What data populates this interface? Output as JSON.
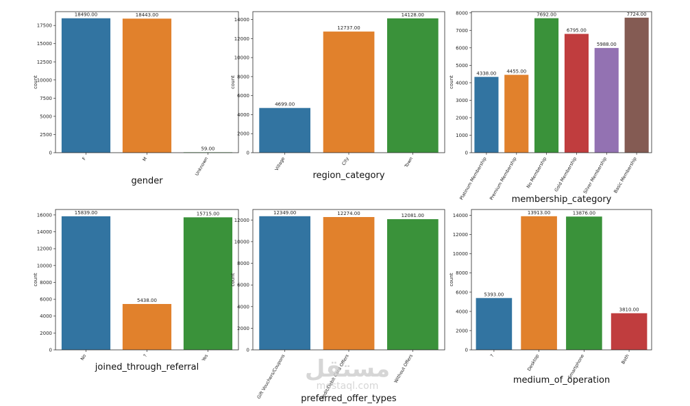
{
  "colors": [
    "#3274a1",
    "#e1812c",
    "#3a923a",
    "#c03d3e",
    "#9372b2",
    "#845b53"
  ],
  "watermark": {
    "logo": "مستقل",
    "url": "mostaql.com"
  },
  "chart_data": [
    {
      "type": "bar",
      "xlabel": "gender",
      "ylabel": "count",
      "categories": [
        "F",
        "M",
        "Unknown"
      ],
      "values": [
        18490,
        18443,
        59
      ],
      "value_labels": [
        "18490.00",
        "18443.00",
        "59.00"
      ],
      "yticks": [
        0,
        2500,
        5000,
        7500,
        10000,
        12500,
        15000,
        17500
      ],
      "ylim": [
        0,
        19400
      ],
      "grid": false
    },
    {
      "type": "bar",
      "xlabel": "region_category",
      "ylabel": "count",
      "categories": [
        "Village",
        "City",
        "Town"
      ],
      "values": [
        4699,
        12737,
        14128
      ],
      "value_labels": [
        "4699.00",
        "12737.00",
        "14128.00"
      ],
      "yticks": [
        0,
        2000,
        4000,
        6000,
        8000,
        10000,
        12000,
        14000
      ],
      "ylim": [
        0,
        14830
      ],
      "grid": false
    },
    {
      "type": "bar",
      "xlabel": "membership_category",
      "ylabel": "count",
      "categories": [
        "Platinum Membership",
        "Premium Membership",
        "No Membership",
        "Gold Membership",
        "Silver Membership",
        "Basic Membership"
      ],
      "values": [
        4338,
        4455,
        7692,
        6795,
        5988,
        7724
      ],
      "value_labels": [
        "4338.00",
        "4455.00",
        "7692.00",
        "6795.00",
        "5988.00",
        "7724.00"
      ],
      "yticks": [
        0,
        1000,
        2000,
        3000,
        4000,
        5000,
        6000,
        7000,
        8000
      ],
      "ylim": [
        0,
        8070
      ],
      "grid": false
    },
    {
      "type": "bar",
      "xlabel": "joined_through_referral",
      "ylabel": "count",
      "categories": [
        "No",
        "?",
        "Yes"
      ],
      "values": [
        15839,
        5438,
        15715
      ],
      "value_labels": [
        "15839.00",
        "5438.00",
        "15715.00"
      ],
      "yticks": [
        0,
        2000,
        4000,
        6000,
        8000,
        10000,
        12000,
        14000,
        16000
      ],
      "ylim": [
        0,
        16640
      ],
      "grid": false
    },
    {
      "type": "bar",
      "xlabel": "preferred_offer_types",
      "ylabel": "count",
      "categories": [
        "Gift Vouchers/Coupons",
        "Credit/Debit Card Offers",
        "Without Offers"
      ],
      "values": [
        12349,
        12274,
        12081
      ],
      "value_labels": [
        "12349.00",
        "12274.00",
        "12081.00"
      ],
      "yticks": [
        0,
        2000,
        4000,
        6000,
        8000,
        10000,
        12000
      ],
      "ylim": [
        0,
        12970
      ],
      "grid": false
    },
    {
      "type": "bar",
      "xlabel": "medium_of_operation",
      "ylabel": "count",
      "categories": [
        "?",
        "Desktop",
        "Smartphone",
        "Both"
      ],
      "values": [
        5393,
        13913,
        13876,
        3810
      ],
      "value_labels": [
        "5393.00",
        "13913.00",
        "13876.00",
        "3810.00"
      ],
      "yticks": [
        0,
        2000,
        4000,
        6000,
        8000,
        10000,
        12000,
        14000
      ],
      "ylim": [
        0,
        14610
      ],
      "grid": false
    }
  ]
}
